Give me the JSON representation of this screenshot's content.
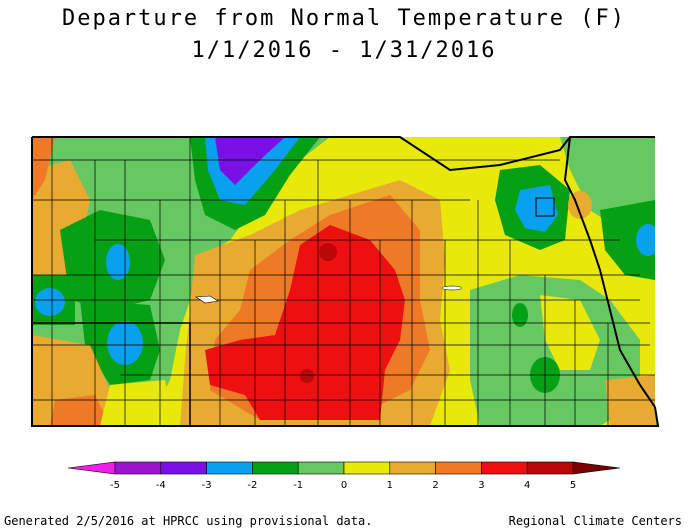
{
  "title": {
    "line1": "Departure from Normal Temperature (F)",
    "line2": "1/1/2016 - 1/31/2016"
  },
  "legend": {
    "colors": [
      "#f01ee8",
      "#9a14cc",
      "#7a10e6",
      "#0aa0f0",
      "#06a014",
      "#66c860",
      "#e8e80a",
      "#e8aa30",
      "#ee7a28",
      "#ee1010",
      "#b80808",
      "#7a0000"
    ],
    "labels": [
      "-5",
      "-4",
      "-3",
      "-2",
      "-1",
      "0",
      "1",
      "2",
      "3",
      "4",
      "5"
    ]
  },
  "footer": {
    "left": "Generated 2/5/2016 at HPRCC using provisional data.",
    "right": "Regional Climate Centers"
  }
}
